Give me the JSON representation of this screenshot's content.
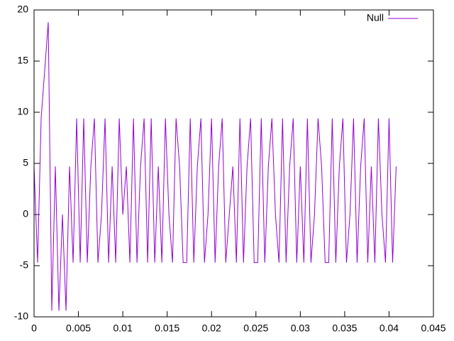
{
  "chart_data": {
    "type": "line",
    "x": [
      0,
      0.0004,
      0.0008,
      0.0012,
      0.0016,
      0.002,
      0.0024,
      0.0028,
      0.0032,
      0.0036,
      0.004,
      0.0044,
      0.0048,
      0.0052,
      0.0056,
      0.006,
      0.0064,
      0.0068,
      0.0072,
      0.0076,
      0.008,
      0.0084,
      0.0088,
      0.0092,
      0.0096,
      0.01,
      0.0104,
      0.0108,
      0.0112,
      0.0116,
      0.012,
      0.0124,
      0.0128,
      0.0132,
      0.0136,
      0.014,
      0.0144,
      0.0148,
      0.0152,
      0.0156,
      0.016,
      0.0164,
      0.0168,
      0.0172,
      0.0176,
      0.018,
      0.0184,
      0.0188,
      0.0192,
      0.0196,
      0.02,
      0.0204,
      0.0208,
      0.0212,
      0.0216,
      0.022,
      0.0224,
      0.0228,
      0.0232,
      0.0236,
      0.024,
      0.0244,
      0.0248,
      0.0252,
      0.0256,
      0.026,
      0.0264,
      0.0268,
      0.0272,
      0.0276,
      0.028,
      0.0284,
      0.0288,
      0.0292,
      0.0296,
      0.03,
      0.0304,
      0.0308,
      0.0312,
      0.0316,
      0.032,
      0.0324,
      0.0328,
      0.0332,
      0.0336,
      0.034,
      0.0344,
      0.0348,
      0.0352,
      0.0356,
      0.036,
      0.0364,
      0.0368,
      0.0372,
      0.0376,
      0.038,
      0.0384,
      0.0388,
      0.0392,
      0.0396,
      0.04,
      0.0404,
      0.0408
    ],
    "series": [
      {
        "name": "Null",
        "color": "#9400d3",
        "values": [
          4.7,
          -4.7,
          9.4,
          14.1,
          18.8,
          -9.4,
          4.7,
          -9.4,
          0,
          -9.4,
          4.7,
          -4.7,
          9.4,
          -4.7,
          9.4,
          -4.7,
          4.7,
          9.4,
          -4.7,
          0,
          9.4,
          -4.7,
          4.7,
          -4.7,
          9.4,
          0,
          4.7,
          -4.7,
          9.4,
          -4.7,
          4.7,
          9.4,
          -4.7,
          9.4,
          -4.7,
          4.7,
          -4.7,
          9.4,
          0,
          -4.7,
          9.4,
          4.7,
          -4.7,
          -4.7,
          9.4,
          -4.7,
          4.7,
          9.4,
          -4.7,
          0,
          9.4,
          -4.7,
          4.7,
          9.4,
          -4.7,
          0,
          4.7,
          -4.7,
          9.4,
          -4.7,
          4.7,
          9.4,
          -4.7,
          -4.7,
          9.4,
          -4.7,
          4.7,
          9.4,
          0,
          -4.7,
          9.4,
          -4.7,
          4.7,
          9.4,
          -4.7,
          4.7,
          -4.7,
          9.4,
          -4.7,
          0,
          9.4,
          4.7,
          -4.7,
          -4.7,
          9.4,
          -4.7,
          4.7,
          9.4,
          -4.7,
          0,
          9.4,
          -4.7,
          4.7,
          9.4,
          -4.7,
          4.7,
          -4.7,
          9.4,
          0,
          -4.7,
          9.4,
          -4.7,
          4.7
        ]
      }
    ],
    "xlim": [
      0,
      0.045
    ],
    "xticks": [
      0,
      0.005,
      0.01,
      0.015,
      0.02,
      0.025,
      0.03,
      0.035,
      0.04,
      0.045
    ],
    "ylim": [
      -10,
      20
    ],
    "yticks": [
      -10,
      -5,
      0,
      5,
      10,
      15,
      20
    ],
    "grid": false,
    "legend": "top-right"
  }
}
